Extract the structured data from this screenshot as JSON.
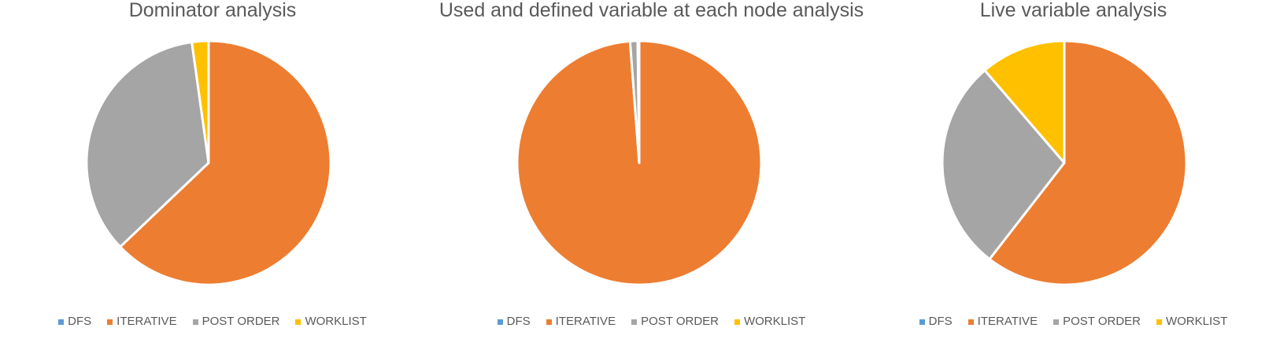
{
  "chart_data": [
    {
      "type": "pie",
      "title": "Dominator analysis",
      "categories": [
        "DFS",
        "ITERATIVE",
        "POST ORDER",
        "WORKLIST"
      ],
      "values": [
        0,
        62.9,
        34.9,
        2.2
      ],
      "colors": [
        "#5B9BD5",
        "#ED7D31",
        "#A5A5A5",
        "#FFC000"
      ],
      "legend": "bottom"
    },
    {
      "type": "pie",
      "title": "Used and defined variable at each node analysis",
      "categories": [
        "DFS",
        "ITERATIVE",
        "POST ORDER",
        "WORKLIST"
      ],
      "values": [
        0,
        98.8,
        1.0,
        0.2
      ],
      "colors": [
        "#5B9BD5",
        "#ED7D31",
        "#A5A5A5",
        "#FFC000"
      ],
      "legend": "bottom"
    },
    {
      "type": "pie",
      "title": "Live variable analysis",
      "categories": [
        "DFS",
        "ITERATIVE",
        "POST ORDER",
        "WORKLIST"
      ],
      "values": [
        0,
        60.5,
        28.2,
        11.3
      ],
      "colors": [
        "#5B9BD5",
        "#ED7D31",
        "#A5A5A5",
        "#FFC000"
      ],
      "legend": "bottom"
    }
  ]
}
